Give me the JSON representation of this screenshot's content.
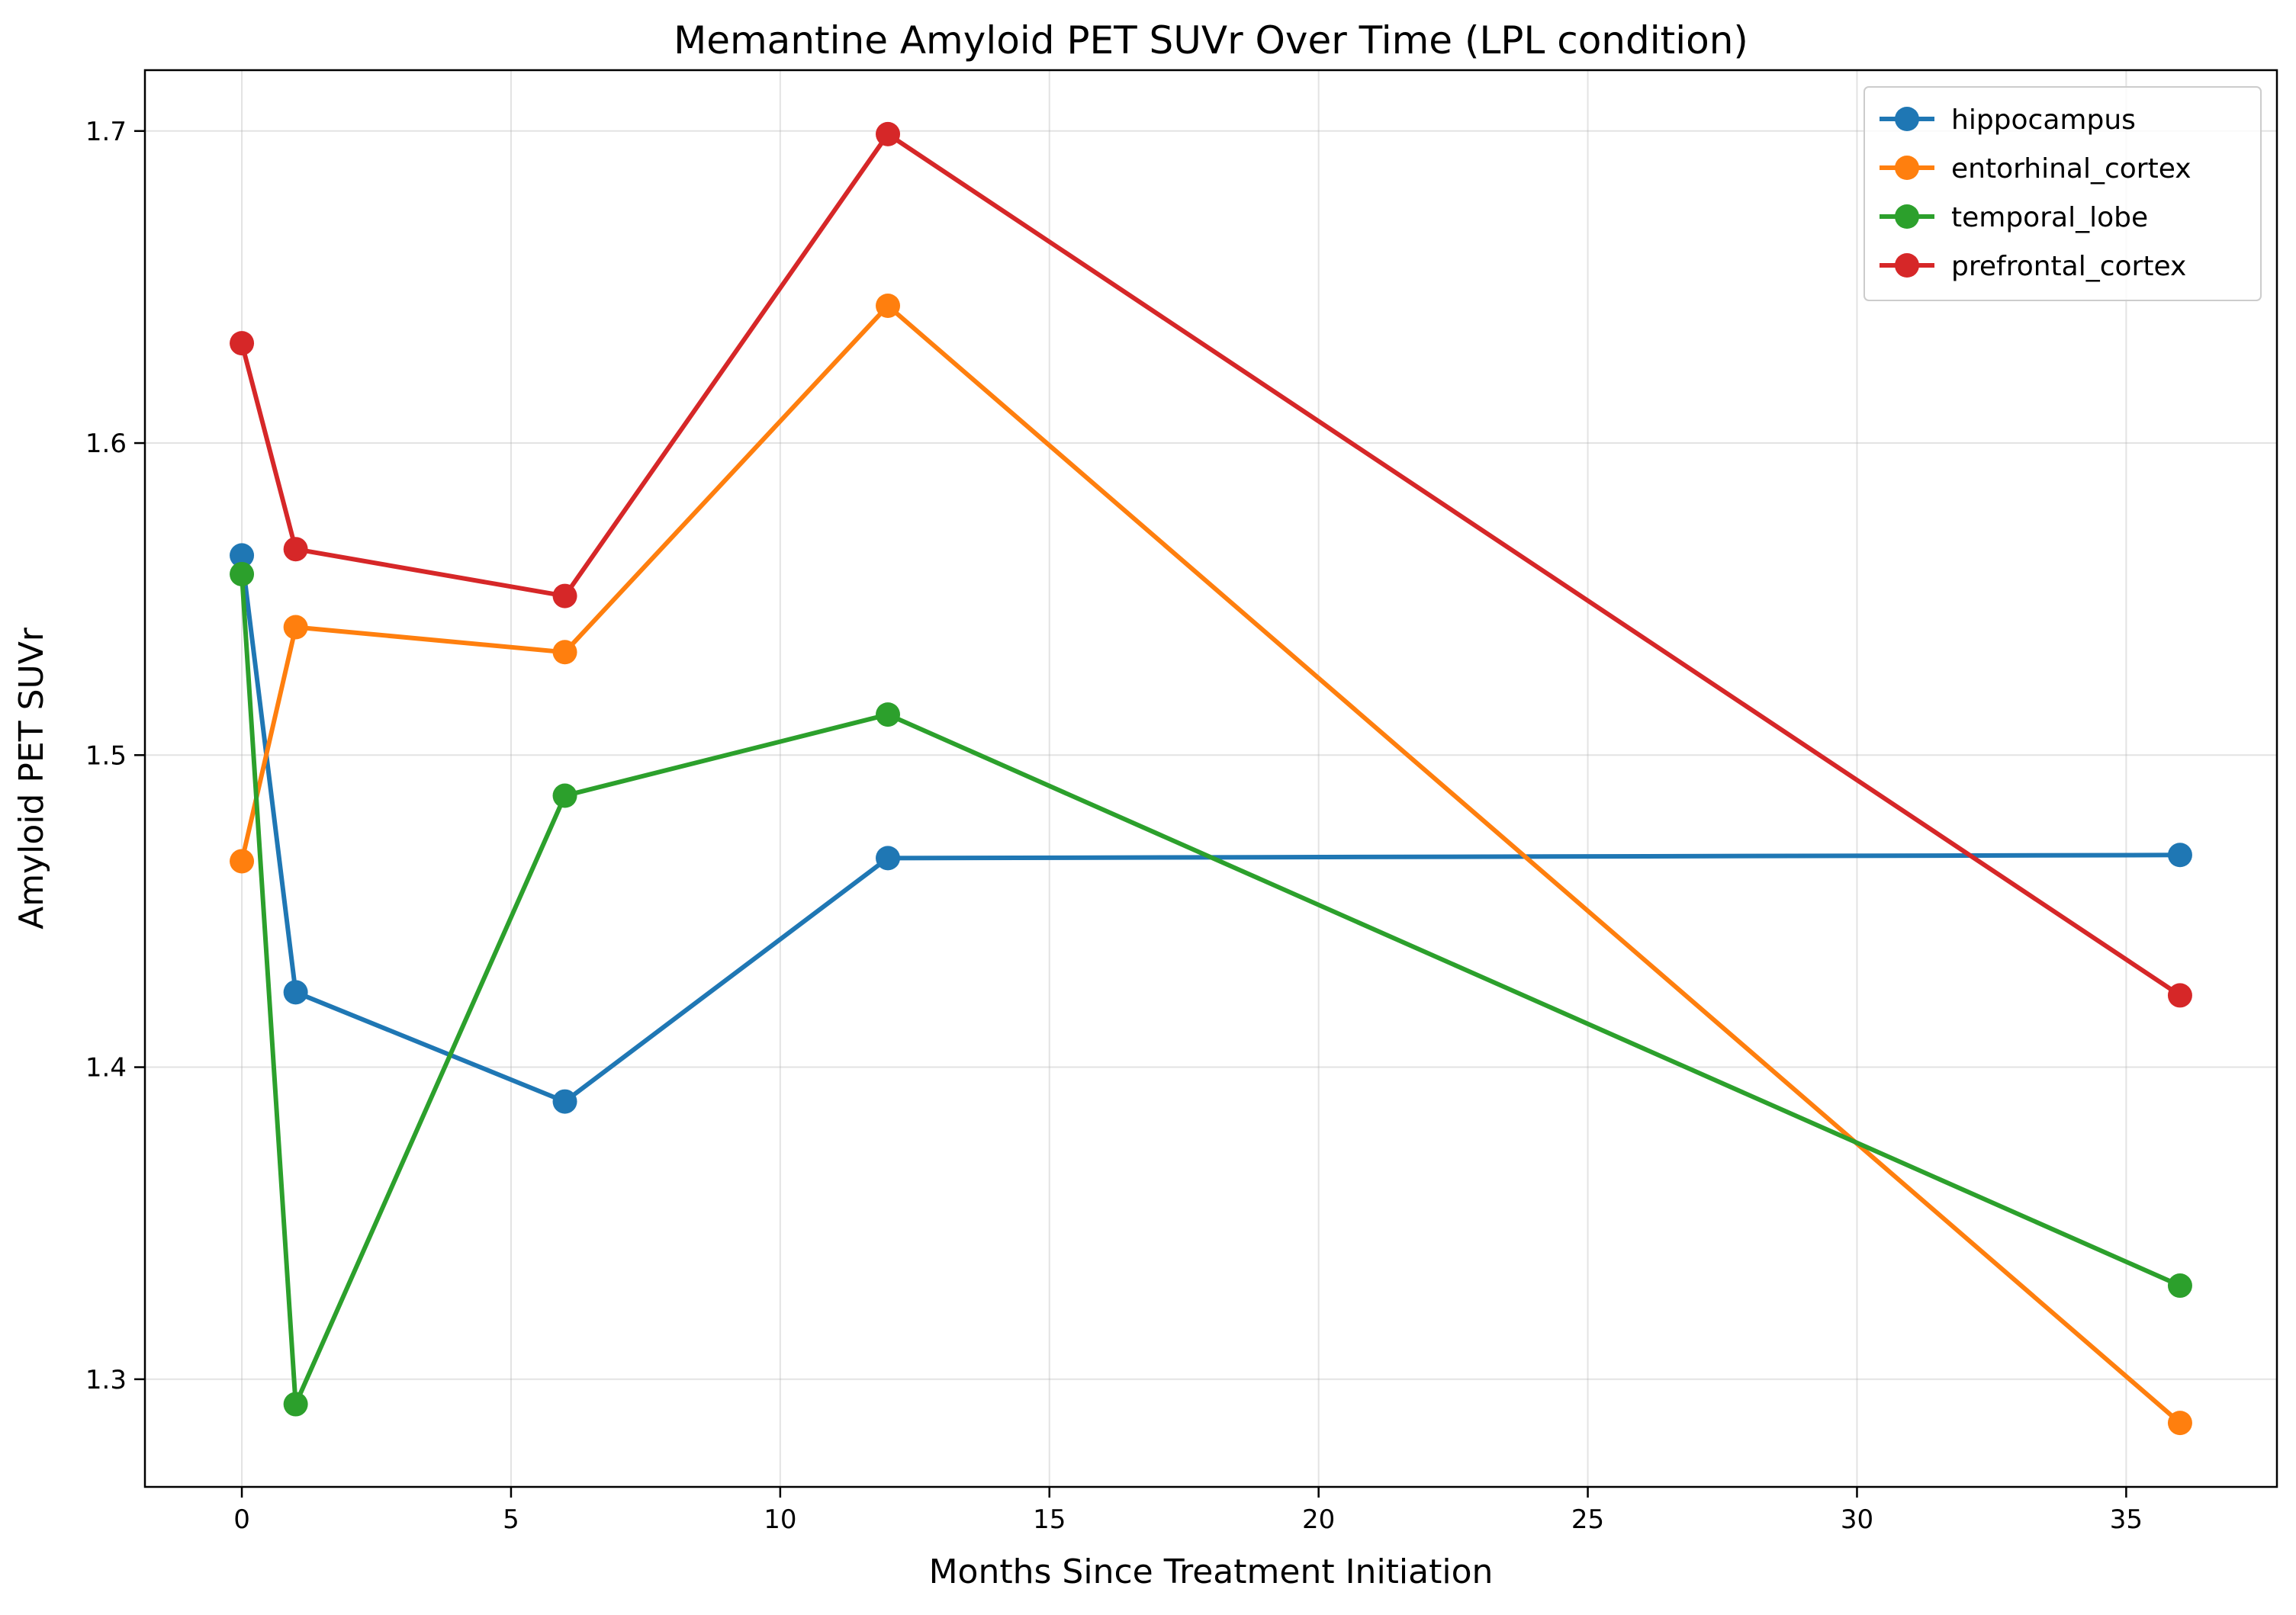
{
  "chart_data": {
    "type": "line",
    "title": "Memantine Amyloid PET SUVr Over Time (LPL condition)",
    "xlabel": "Months Since Treatment Initiation",
    "ylabel": "Amyloid PET SUVr",
    "xlim": [
      -1.8,
      37.8
    ],
    "ylim": [
      1.2655,
      1.7195
    ],
    "xticks": [
      0,
      5,
      10,
      15,
      20,
      25,
      30,
      35
    ],
    "yticks": [
      1.3,
      1.4,
      1.5,
      1.6,
      1.7
    ],
    "grid": true,
    "legend_position": "top-right",
    "x": [
      0,
      1,
      6,
      12,
      36
    ],
    "series": [
      {
        "name": "hippocampus",
        "color": "#1f77b4",
        "values": [
          1.564,
          1.424,
          1.389,
          1.467,
          1.468
        ]
      },
      {
        "name": "entorhinal_cortex",
        "color": "#ff7f0e",
        "values": [
          1.466,
          1.541,
          1.533,
          1.644,
          1.286
        ]
      },
      {
        "name": "temporal_lobe",
        "color": "#2ca02c",
        "values": [
          1.558,
          1.292,
          1.487,
          1.513,
          1.33
        ]
      },
      {
        "name": "prefrontal_cortex",
        "color": "#d62728",
        "values": [
          1.632,
          1.566,
          1.551,
          1.699,
          1.423
        ]
      }
    ]
  }
}
